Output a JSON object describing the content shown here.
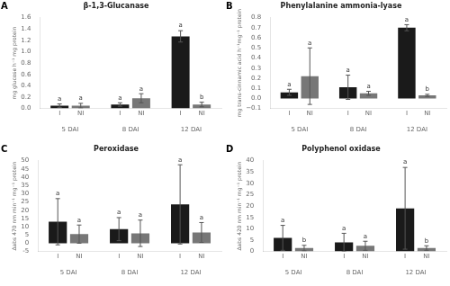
{
  "chart_data": [
    {
      "type": "bar",
      "panel_label": "A",
      "title": "β-1,3-Glucanase",
      "ylabel": "mg glucose h⁻¹ mg protein",
      "categories": [
        "5 DAI",
        "8 DAI",
        "12 DAI"
      ],
      "series": [
        {
          "name": "I",
          "color": "#1a1a1a",
          "values": [
            0.05,
            0.07,
            1.27
          ],
          "errors": [
            0.03,
            0.03,
            0.1
          ],
          "letters": [
            "a",
            "a",
            "a"
          ]
        },
        {
          "name": "NI",
          "color": "#777777",
          "values": [
            0.05,
            0.18,
            0.07
          ],
          "errors": [
            0.04,
            0.08,
            0.04
          ],
          "letters": [
            "a",
            "a",
            "b"
          ]
        }
      ],
      "ylim": [
        0,
        1.6
      ],
      "yticks": [
        {
          "value": 0,
          "label": "0.0"
        },
        {
          "value": 0.2,
          "label": "0.2"
        },
        {
          "value": 0.4,
          "label": "0.4"
        },
        {
          "value": 0.6,
          "label": "0.6"
        },
        {
          "value": 0.8,
          "label": "0.8"
        },
        {
          "value": 1.0,
          "label": "1.0"
        },
        {
          "value": 1.2,
          "label": "1.2"
        },
        {
          "value": 1.4,
          "label": "1.4"
        },
        {
          "value": 1.6,
          "label": "1.6"
        }
      ],
      "grid": false,
      "legend": false
    },
    {
      "type": "bar",
      "panel_label": "B",
      "title": "Phenylalanine ammonia-lyase",
      "ylabel": "mg trans-cinnamic acid h⁻¹mg⁻¹ protein",
      "categories": [
        "5 DAI",
        "8 DAI",
        "12 DAI"
      ],
      "series": [
        {
          "name": "I",
          "color": "#1a1a1a",
          "values": [
            0.06,
            0.11,
            0.7
          ],
          "errors": [
            0.03,
            0.12,
            0.03
          ],
          "letters": [
            "a",
            "a",
            "a"
          ]
        },
        {
          "name": "NI",
          "color": "#777777",
          "values": [
            0.22,
            0.05,
            0.03
          ],
          "errors": [
            0.28,
            0.02,
            0.01
          ],
          "letters": [
            "a",
            "a",
            "b"
          ]
        }
      ],
      "ylim": [
        -0.1,
        0.8
      ],
      "yticks": [
        {
          "value": -0.1,
          "label": "−0.1"
        },
        {
          "value": 0,
          "label": "0.0"
        },
        {
          "value": 0.1,
          "label": "0.1"
        },
        {
          "value": 0.2,
          "label": "0.2"
        },
        {
          "value": 0.3,
          "label": "0.3"
        },
        {
          "value": 0.4,
          "label": "0.4"
        },
        {
          "value": 0.5,
          "label": "0.5"
        },
        {
          "value": 0.6,
          "label": "0.6"
        },
        {
          "value": 0.7,
          "label": "0.7"
        },
        {
          "value": 0.8,
          "label": "0.8"
        }
      ],
      "grid": false,
      "legend": false
    },
    {
      "type": "bar",
      "panel_label": "C",
      "title": "Peroxidase",
      "ylabel": "Δabs 470 nm min⁻¹ mg⁻¹ protein",
      "categories": [
        "5 DAI",
        "8 DAI",
        "12 DAI"
      ],
      "series": [
        {
          "name": "I",
          "color": "#1a1a1a",
          "values": [
            13.0,
            8.5,
            23.5
          ],
          "errors": [
            14.0,
            7.0,
            24.0
          ],
          "letters": [
            "a",
            "a",
            "a"
          ]
        },
        {
          "name": "NI",
          "color": "#777777",
          "values": [
            5.5,
            6.0,
            6.5
          ],
          "errors": [
            5.5,
            8.0,
            6.0
          ],
          "letters": [
            "a",
            "a",
            "a"
          ]
        }
      ],
      "ylim": [
        -5,
        50
      ],
      "yticks": [
        -5,
        0,
        5,
        10,
        15,
        20,
        25,
        30,
        35,
        40,
        45,
        50
      ],
      "grid": false,
      "legend": false
    },
    {
      "type": "bar",
      "panel_label": "D",
      "title": "Polyphenol oxidase",
      "ylabel": "Δabs 420 nm min⁻¹ mg⁻¹ protein",
      "categories": [
        "5 DAI",
        "8 DAI",
        "12 DAI"
      ],
      "series": [
        {
          "name": "I",
          "color": "#1a1a1a",
          "values": [
            6.0,
            4.0,
            19.0
          ],
          "errors": [
            5.5,
            4.0,
            18.0
          ],
          "letters": [
            "a",
            "a",
            "a"
          ]
        },
        {
          "name": "NI",
          "color": "#777777",
          "values": [
            1.5,
            2.5,
            1.5
          ],
          "errors": [
            1.2,
            2.0,
            1.0
          ],
          "letters": [
            "b",
            "a",
            "b"
          ]
        }
      ],
      "ylim": [
        0,
        40
      ],
      "yticks": [
        0,
        5,
        10,
        15,
        20,
        25,
        30,
        35,
        40
      ],
      "grid": false,
      "legend": false
    }
  ]
}
